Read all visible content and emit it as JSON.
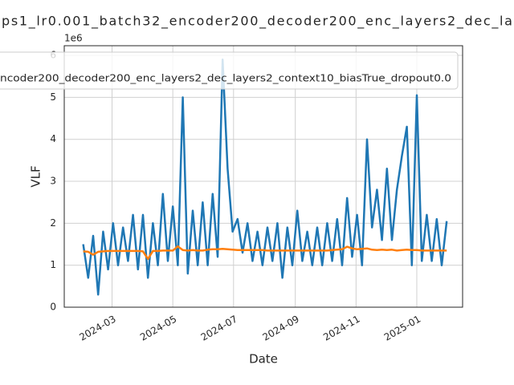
{
  "chart_data": {
    "type": "line",
    "title": "ps1_lr0.001_batch32_encoder200_decoder200_enc_layers2_dec_la",
    "xlabel": "Date",
    "ylabel": "VLF",
    "y_offset_label": "1e6",
    "grid": true,
    "legend": "upper left",
    "x": [
      "2024-02-01",
      "2024-02-06",
      "2024-02-11",
      "2024-02-16",
      "2024-02-21",
      "2024-02-26",
      "2024-03-02",
      "2024-03-07",
      "2024-03-12",
      "2024-03-17",
      "2024-03-22",
      "2024-03-27",
      "2024-04-01",
      "2024-04-06",
      "2024-04-11",
      "2024-04-16",
      "2024-04-21",
      "2024-04-26",
      "2024-05-01",
      "2024-05-06",
      "2024-05-11",
      "2024-05-16",
      "2024-05-21",
      "2024-05-26",
      "2024-05-31",
      "2024-06-05",
      "2024-06-10",
      "2024-06-15",
      "2024-06-20",
      "2024-06-25",
      "2024-06-30",
      "2024-07-05",
      "2024-07-10",
      "2024-07-15",
      "2024-07-20",
      "2024-07-25",
      "2024-07-30",
      "2024-08-04",
      "2024-08-09",
      "2024-08-14",
      "2024-08-19",
      "2024-08-24",
      "2024-08-29",
      "2024-09-03",
      "2024-09-08",
      "2024-09-13",
      "2024-09-18",
      "2024-09-23",
      "2024-09-28",
      "2024-10-03",
      "2024-10-08",
      "2024-10-13",
      "2024-10-18",
      "2024-10-23",
      "2024-10-28",
      "2024-11-02",
      "2024-11-07",
      "2024-11-12",
      "2024-11-17",
      "2024-11-22",
      "2024-11-27",
      "2024-12-02",
      "2024-12-07",
      "2024-12-12",
      "2024-12-17",
      "2024-12-22",
      "2024-12-27",
      "2025-01-01",
      "2025-01-06",
      "2025-01-11",
      "2025-01-16",
      "2025-01-21",
      "2025-01-26",
      "2025-01-31"
    ],
    "series": [
      {
        "name": "ncoder200_decoder200_enc_layers2_dec_layers2_context10_biasTrue_dropout0.0",
        "color": "#1f77b4",
        "values": [
          1.5,
          0.7,
          1.7,
          0.3,
          1.8,
          0.9,
          2.0,
          1.0,
          1.9,
          1.1,
          2.2,
          0.9,
          2.2,
          0.7,
          2.0,
          1.0,
          2.7,
          1.1,
          2.4,
          1.0,
          5.0,
          0.8,
          2.3,
          1.0,
          2.5,
          1.0,
          2.7,
          1.2,
          5.9,
          3.3,
          1.8,
          2.1,
          1.3,
          2.0,
          1.1,
          1.8,
          1.0,
          1.9,
          1.1,
          2.0,
          0.7,
          1.9,
          1.0,
          2.3,
          1.1,
          1.8,
          1.0,
          1.9,
          1.0,
          2.0,
          1.1,
          2.1,
          1.0,
          2.6,
          1.2,
          2.2,
          1.0,
          4.0,
          1.9,
          2.8,
          1.6,
          3.3,
          1.6,
          2.8,
          3.6,
          4.3,
          1.0,
          5.05,
          1.1,
          2.2,
          1.1,
          2.1,
          1.0,
          2.05
        ]
      },
      {
        "color": "#ff7f0e",
        "values": [
          1.33,
          1.32,
          1.25,
          1.32,
          1.33,
          1.34,
          1.34,
          1.34,
          1.34,
          1.34,
          1.34,
          1.34,
          1.33,
          1.15,
          1.34,
          1.34,
          1.35,
          1.35,
          1.35,
          1.45,
          1.36,
          1.35,
          1.36,
          1.35,
          1.35,
          1.37,
          1.38,
          1.38,
          1.39,
          1.38,
          1.37,
          1.36,
          1.36,
          1.36,
          1.36,
          1.36,
          1.36,
          1.35,
          1.35,
          1.35,
          1.35,
          1.35,
          1.35,
          1.35,
          1.35,
          1.35,
          1.35,
          1.35,
          1.35,
          1.35,
          1.36,
          1.37,
          1.38,
          1.44,
          1.4,
          1.38,
          1.39,
          1.4,
          1.37,
          1.36,
          1.37,
          1.36,
          1.37,
          1.35,
          1.36,
          1.37,
          1.36,
          1.36,
          1.35,
          1.35,
          1.35,
          1.35,
          1.35,
          1.35
        ]
      }
    ],
    "xlim": [
      "2024-01-13",
      "2025-02-16"
    ],
    "xticks": [
      {
        "value": "2024-03-01",
        "label": "2024-03"
      },
      {
        "value": "2024-05-01",
        "label": "2024-05"
      },
      {
        "value": "2024-07-01",
        "label": "2024-07"
      },
      {
        "value": "2024-09-01",
        "label": "2024-09"
      },
      {
        "value": "2024-11-01",
        "label": "2024-11"
      },
      {
        "value": "2025-01-01",
        "label": "2025-01"
      }
    ],
    "ylim": [
      0,
      6.23
    ],
    "yticks": [
      0,
      1,
      2,
      3,
      4,
      5,
      6
    ]
  }
}
